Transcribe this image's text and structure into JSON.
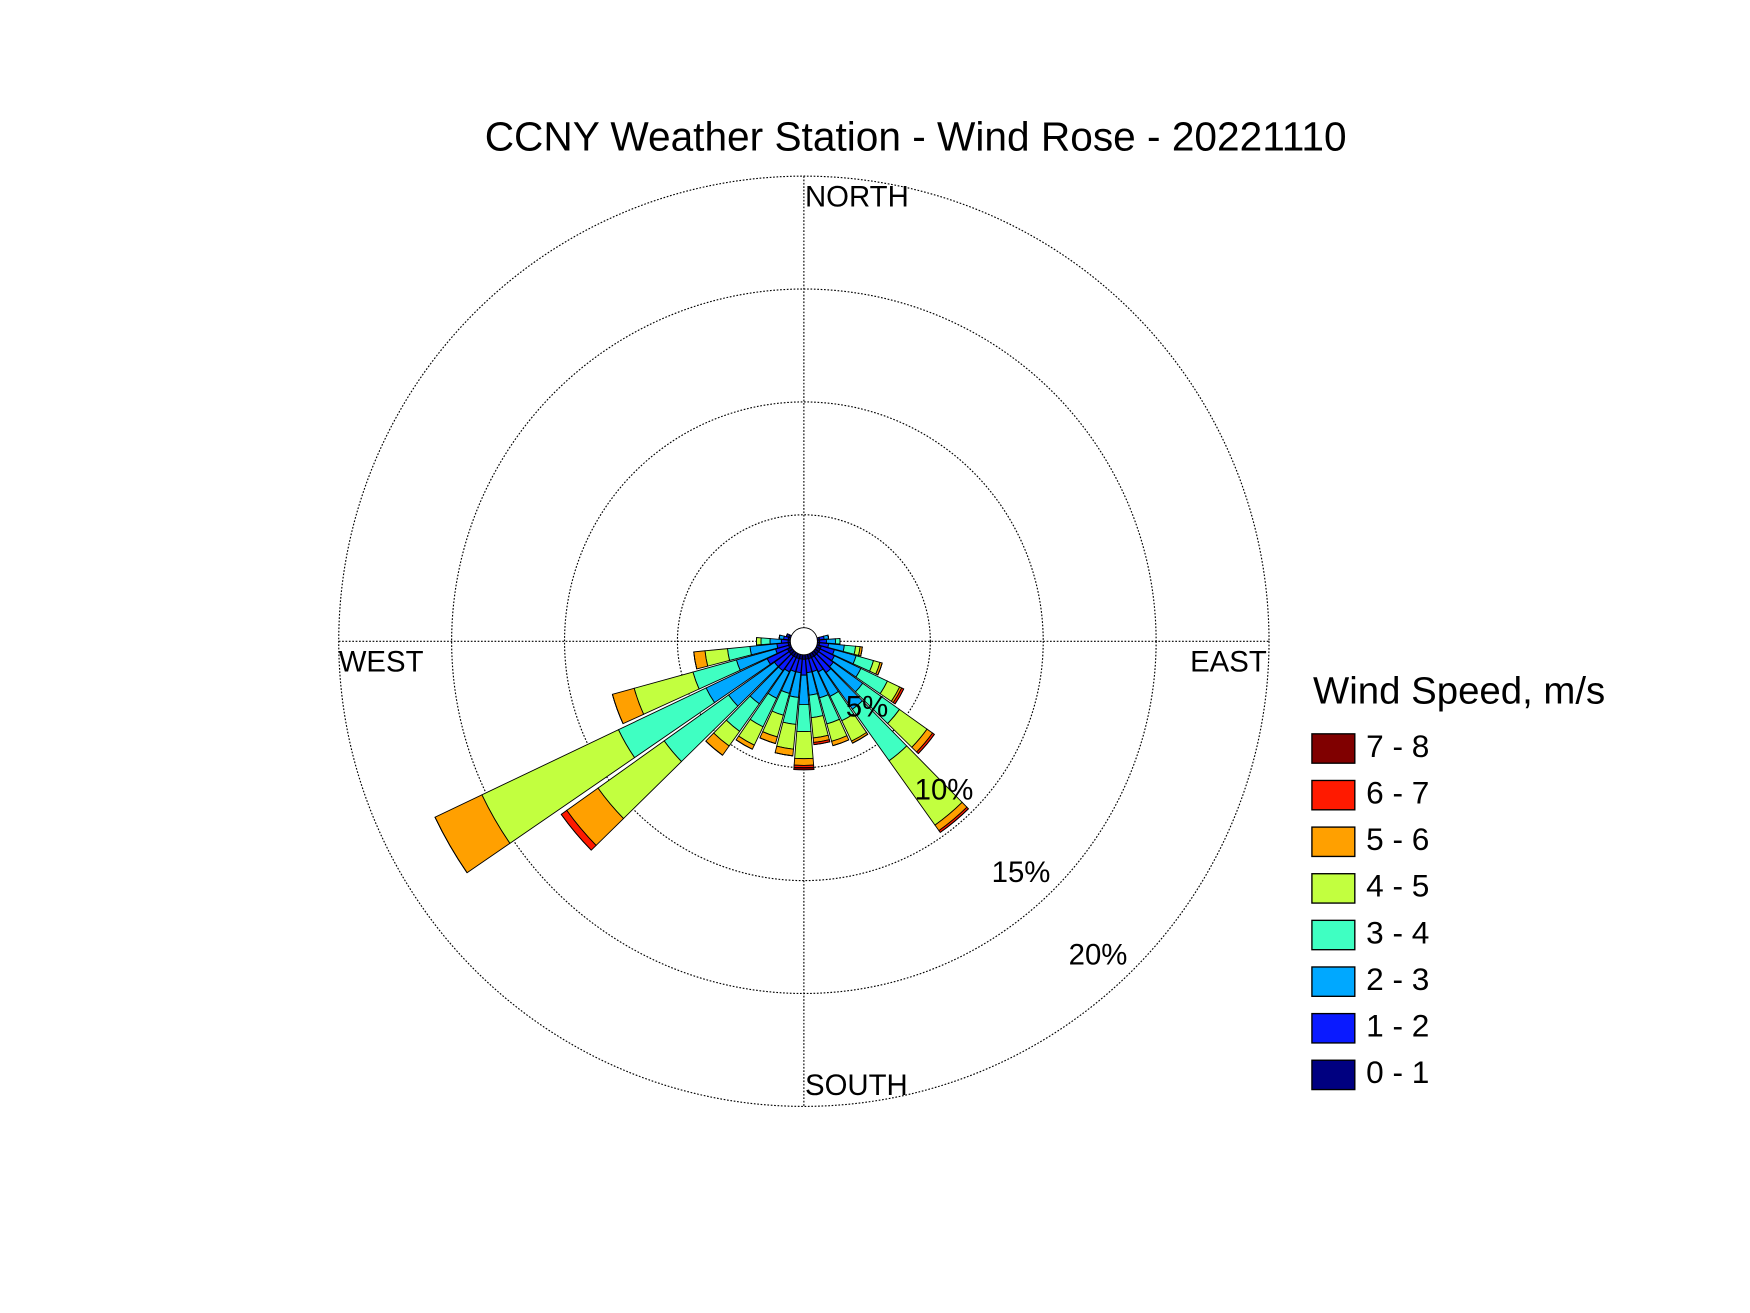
{
  "chart_data": {
    "type": "windrose",
    "title": "CCNY Weather Station - Wind Rose - 20221110",
    "legend_title": "Wind Speed, m/s",
    "direction_labels": {
      "north": "NORTH",
      "east": "EAST",
      "south": "SOUTH",
      "west": "WEST"
    },
    "x": [
      80,
      90,
      100,
      110,
      120,
      130,
      140,
      150,
      160,
      170,
      180,
      190,
      200,
      210,
      220,
      230,
      240,
      250,
      260,
      270,
      280,
      290
    ],
    "rlim": [
      0,
      20
    ],
    "rticks": [
      {
        "value": 5,
        "label": "5%"
      },
      {
        "value": 10,
        "label": "10%"
      },
      {
        "value": 15,
        "label": "15%"
      },
      {
        "value": 20,
        "label": "20%"
      }
    ],
    "grid": true,
    "series": [
      {
        "name": "0 - 1",
        "color": "#000080",
        "values": [
          0.1,
          0.1,
          0.1,
          0.2,
          0.2,
          0.2,
          0.2,
          0.2,
          0.2,
          0.2,
          0.2,
          0.2,
          0.2,
          0.2,
          0.2,
          0.2,
          0.2,
          0.1,
          0.1,
          0.1,
          0.1,
          0.1
        ]
      },
      {
        "name": "1 - 2",
        "color": "#0a1aff",
        "values": [
          0.2,
          0.3,
          0.4,
          0.6,
          0.7,
          0.8,
          0.9,
          0.7,
          0.6,
          0.6,
          0.7,
          0.6,
          0.6,
          0.7,
          0.8,
          0.8,
          1.0,
          0.6,
          0.5,
          0.3,
          0.2,
          0.1
        ]
      },
      {
        "name": "2 - 3",
        "color": "#00a8ff",
        "values": [
          0.2,
          0.4,
          0.7,
          1.0,
          1.3,
          1.6,
          2.0,
          1.2,
          1.2,
          1.0,
          1.3,
          1.1,
          1.0,
          1.3,
          1.8,
          2.5,
          3.0,
          1.8,
          1.2,
          0.5,
          0.2,
          0
        ]
      },
      {
        "name": "3 - 4",
        "color": "#3fffc2",
        "values": [
          0,
          0.2,
          0.5,
          0.8,
          1.3,
          2.0,
          2.8,
          1.2,
          1.2,
          1.0,
          1.2,
          1.2,
          1.0,
          1.4,
          1.5,
          3.5,
          4.3,
          2.0,
          1.0,
          0.4,
          0,
          0
        ]
      },
      {
        "name": "4 - 5",
        "color": "#c2ff3f",
        "values": [
          0,
          0,
          0.2,
          0.3,
          0.6,
          1.5,
          3.5,
          1.0,
          0.8,
          0.9,
          1.2,
          1.1,
          1.0,
          0.9,
          0.8,
          3.6,
          6.7,
          2.7,
          1.0,
          0.2,
          0,
          0
        ]
      },
      {
        "name": "5 - 6",
        "color": "#ffa000",
        "values": [
          0,
          0,
          0.1,
          0.1,
          0.1,
          0.3,
          0.3,
          0.1,
          0.2,
          0.2,
          0.3,
          0.3,
          0.3,
          0.2,
          0.5,
          1.7,
          2.3,
          1.0,
          0.5,
          0,
          0,
          0
        ]
      },
      {
        "name": "6 - 7",
        "color": "#ff1a00",
        "values": [
          0,
          0,
          0,
          0,
          0.1,
          0.1,
          0.1,
          0,
          0,
          0.1,
          0.1,
          0,
          0,
          0,
          0,
          0.3,
          0,
          0,
          0,
          0,
          0,
          0
        ]
      },
      {
        "name": "7 - 8",
        "color": "#800000",
        "values": [
          0,
          0,
          0,
          0,
          0,
          0,
          0,
          0,
          0,
          0,
          0.1,
          0,
          0,
          0,
          0,
          0,
          0,
          0,
          0,
          0,
          0,
          0
        ]
      }
    ]
  }
}
